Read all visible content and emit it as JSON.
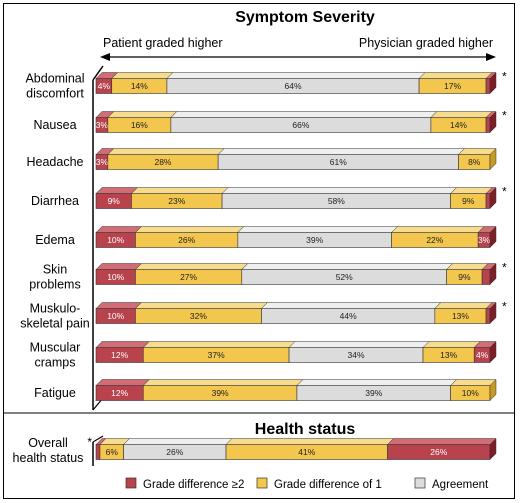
{
  "colors": {
    "grade2": "#b8434d",
    "grade2_top": "#d26d76",
    "grade2_side": "#7d1e27",
    "grade1": "#f3c64e",
    "grade1_top": "#f8dc8e",
    "grade1_side": "#c49b27",
    "agree": "#dcdcdc",
    "agree_top": "#efefef",
    "agree_side": "#a9a9a9"
  },
  "chart_data": [
    {
      "type": "bar",
      "orientation": "horizontal",
      "stacked": true,
      "title": "Symptom Severity",
      "direction_left": "Patient graded higher",
      "direction_right": "Physician graded higher",
      "segment_order": [
        "Grade difference ≥2",
        "Grade difference of 1",
        "Agreement",
        "Grade difference of 1",
        "Grade difference ≥2"
      ],
      "segment_kinds": [
        "grade2",
        "grade1",
        "agree",
        "grade1",
        "grade2"
      ],
      "categories": [
        {
          "label_lines": [
            "Abdominal",
            "discomfort"
          ],
          "values": [
            4,
            14,
            64,
            17,
            1
          ],
          "labels": [
            "4%",
            "14%",
            "64%",
            "17%",
            ""
          ],
          "star": "*"
        },
        {
          "label_lines": [
            "Nausea"
          ],
          "values": [
            3,
            16,
            66,
            14,
            1
          ],
          "labels": [
            "3%",
            "16%",
            "66%",
            "14%",
            ""
          ],
          "star": "*"
        },
        {
          "label_lines": [
            "Headache"
          ],
          "values": [
            3,
            28,
            61,
            8,
            0
          ],
          "labels": [
            "3%",
            "28%",
            "61%",
            "8%",
            ""
          ],
          "star": ""
        },
        {
          "label_lines": [
            "Diarrhea"
          ],
          "values": [
            9,
            23,
            58,
            9,
            1
          ],
          "labels": [
            "9%",
            "23%",
            "58%",
            "9%",
            ""
          ],
          "star": "*"
        },
        {
          "label_lines": [
            "Edema"
          ],
          "values": [
            10,
            26,
            39,
            22,
            3
          ],
          "labels": [
            "10%",
            "26%",
            "39%",
            "22%",
            "3%"
          ],
          "star": ""
        },
        {
          "label_lines": [
            "Skin",
            "problems"
          ],
          "values": [
            10,
            27,
            52,
            9,
            2
          ],
          "labels": [
            "10%",
            "27%",
            "52%",
            "9%",
            ""
          ],
          "star": "*"
        },
        {
          "label_lines": [
            "Muskulo-",
            "skeletal pain"
          ],
          "values": [
            10,
            32,
            44,
            13,
            1
          ],
          "labels": [
            "10%",
            "32%",
            "44%",
            "13%",
            ""
          ],
          "star": "*"
        },
        {
          "label_lines": [
            "Muscular",
            "cramps"
          ],
          "values": [
            12,
            37,
            34,
            13,
            4
          ],
          "labels": [
            "12%",
            "37%",
            "34%",
            "13%",
            "4%"
          ],
          "star": ""
        },
        {
          "label_lines": [
            "Fatigue"
          ],
          "values": [
            12,
            39,
            39,
            10,
            0
          ],
          "labels": [
            "12%",
            "39%",
            "39%",
            "10%",
            ""
          ],
          "star": ""
        }
      ]
    },
    {
      "type": "bar",
      "orientation": "horizontal",
      "stacked": true,
      "title": "Health status",
      "segment_kinds": [
        "grade2",
        "grade1",
        "agree",
        "grade1",
        "grade2"
      ],
      "categories": [
        {
          "label_lines": [
            "Overall",
            "health status"
          ],
          "values": [
            1,
            6,
            26,
            41,
            26
          ],
          "labels": [
            "",
            "6%",
            "26%",
            "41%",
            "26%"
          ],
          "star": "*"
        }
      ]
    }
  ],
  "legend": [
    {
      "label": "Grade difference ≥2",
      "kind": "grade2"
    },
    {
      "label": "Grade difference of 1",
      "kind": "grade1"
    },
    {
      "label": "Agreement",
      "kind": "agree"
    }
  ]
}
